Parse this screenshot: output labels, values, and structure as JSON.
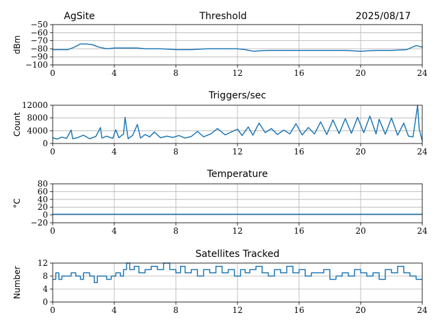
{
  "header": {
    "site": "AgSite",
    "date": "2025/08/17"
  },
  "colors": {
    "series": "#1f77b4",
    "grid": "#b0b0b0"
  },
  "chart_data": [
    {
      "type": "line",
      "title": "Threshold",
      "xlabel": "",
      "ylabel": "dBm",
      "xlim": [
        0,
        24
      ],
      "ylim": [
        -100,
        -50
      ],
      "xticks": [
        0,
        4,
        8,
        12,
        16,
        20,
        24
      ],
      "yticks": [
        -100,
        -90,
        -80,
        -70,
        -60,
        -50
      ],
      "ytick_labels": [
        "−100",
        "−90",
        "−80",
        "−70",
        "−60",
        "−50"
      ],
      "grid": true,
      "series": [
        {
          "x": [
            0,
            0.5,
            1,
            1.4,
            1.8,
            2.2,
            2.6,
            3.0,
            3.5,
            4,
            4.5,
            5,
            5.5,
            6,
            7,
            8,
            9,
            10,
            11,
            12,
            12.5,
            13,
            14,
            15,
            16,
            17,
            18,
            19,
            20,
            21,
            22,
            23,
            23.6,
            24
          ],
          "y": [
            -81,
            -81,
            -81,
            -78,
            -74,
            -74,
            -75,
            -78,
            -80,
            -79,
            -79,
            -79,
            -79,
            -80,
            -80,
            -81,
            -81,
            -80,
            -80,
            -80,
            -81,
            -83,
            -82,
            -82,
            -82,
            -82,
            -82,
            -82,
            -83,
            -82,
            -82,
            -81,
            -76,
            -78
          ]
        }
      ]
    },
    {
      "type": "line",
      "title": "Triggers/sec",
      "xlabel": "",
      "ylabel": "Count",
      "xlim": [
        0,
        24
      ],
      "ylim": [
        0,
        12000
      ],
      "xticks": [
        0,
        4,
        8,
        12,
        16,
        20,
        24
      ],
      "yticks": [
        0,
        4000,
        8000,
        12000
      ],
      "ytick_labels": [
        "0",
        "4000",
        "8000",
        "12000"
      ],
      "grid": true,
      "series": [
        {
          "x": [
            0,
            0.3,
            0.6,
            0.9,
            1.2,
            1.3,
            1.6,
            2.0,
            2.4,
            2.8,
            3.1,
            3.2,
            3.5,
            3.9,
            4.1,
            4.3,
            4.6,
            4.7,
            4.9,
            5.2,
            5.5,
            5.7,
            6.0,
            6.3,
            6.6,
            7.0,
            7.4,
            7.8,
            8.2,
            8.6,
            9.0,
            9.4,
            9.8,
            10.3,
            10.7,
            11.2,
            11.6,
            12.0,
            12.3,
            12.7,
            13.0,
            13.4,
            13.8,
            14.2,
            14.6,
            15.0,
            15.4,
            15.8,
            16.2,
            16.6,
            17.0,
            17.4,
            17.8,
            18.2,
            18.6,
            19.0,
            19.4,
            19.8,
            20.2,
            20.6,
            21.0,
            21.2,
            21.6,
            22.0,
            22.4,
            22.8,
            23.1,
            23.4,
            23.7,
            23.8,
            24.0
          ],
          "y": [
            1800,
            1400,
            2000,
            1600,
            4200,
            1500,
            1800,
            2600,
            1500,
            2200,
            5000,
            1700,
            2300,
            1600,
            4300,
            1800,
            3000,
            8200,
            1500,
            2600,
            6000,
            1700,
            2800,
            2100,
            3600,
            1800,
            2300,
            1900,
            2500,
            1700,
            2200,
            3800,
            2100,
            3100,
            4700,
            2700,
            3600,
            4500,
            2500,
            5200,
            2600,
            6400,
            3400,
            4700,
            2800,
            4200,
            3000,
            6200,
            2700,
            5000,
            3000,
            6800,
            2800,
            7400,
            3100,
            7800,
            3200,
            8200,
            3400,
            8600,
            3000,
            7600,
            2900,
            8000,
            2600,
            6400,
            2300,
            2100,
            12000,
            4600,
            800
          ]
        }
      ]
    },
    {
      "type": "line",
      "title": "Temperature",
      "xlabel": "",
      "ylabel": "°C",
      "xlim": [
        0,
        24
      ],
      "ylim": [
        -20,
        80
      ],
      "xticks": [
        0,
        4,
        8,
        12,
        16,
        20,
        24
      ],
      "yticks": [
        -20,
        0,
        20,
        40,
        60,
        80
      ],
      "ytick_labels": [
        "−20",
        "0",
        "20",
        "40",
        "60",
        "80"
      ],
      "grid": true,
      "series": [
        {
          "x": [
            0,
            24
          ],
          "y": [
            2,
            2
          ]
        }
      ]
    },
    {
      "type": "line",
      "title": "Satellites Tracked",
      "xlabel": "",
      "ylabel": "Number",
      "xlim": [
        0,
        24
      ],
      "ylim": [
        0,
        12
      ],
      "xticks": [
        0,
        4,
        8,
        12,
        16,
        20,
        24
      ],
      "yticks": [
        0,
        4,
        8,
        12
      ],
      "ytick_labels": [
        "0",
        "4",
        "8",
        "12"
      ],
      "grid": true,
      "series": [
        {
          "step": true,
          "x": [
            0,
            0.2,
            0.4,
            0.6,
            0.9,
            1.2,
            1.5,
            1.8,
            2.0,
            2.4,
            2.7,
            2.9,
            3.2,
            3.5,
            3.8,
            4.1,
            4.4,
            4.6,
            4.8,
            5.0,
            5.3,
            5.6,
            6.0,
            6.4,
            6.8,
            7.2,
            7.6,
            8.0,
            8.3,
            8.6,
            9.0,
            9.4,
            9.8,
            10.2,
            10.6,
            11.0,
            11.4,
            11.8,
            12.2,
            12.5,
            12.8,
            13.2,
            13.6,
            14.0,
            14.4,
            14.8,
            15.2,
            15.6,
            16.0,
            16.4,
            16.8,
            17.2,
            17.6,
            18.0,
            18.4,
            18.8,
            19.2,
            19.6,
            20.0,
            20.4,
            20.8,
            21.2,
            21.6,
            22.0,
            22.4,
            22.8,
            23.2,
            23.6,
            24.0
          ],
          "y": [
            7,
            9,
            7,
            8,
            8,
            9,
            8,
            7,
            9,
            8,
            6,
            8,
            8,
            7,
            8,
            9,
            8,
            10,
            12,
            10,
            11,
            9,
            10,
            11,
            10,
            12,
            10,
            9,
            11,
            9,
            10,
            8,
            10,
            9,
            11,
            9,
            10,
            8,
            10,
            9,
            10,
            11,
            9,
            8,
            10,
            9,
            11,
            9,
            10,
            8,
            9,
            9,
            10,
            7,
            8,
            9,
            8,
            10,
            9,
            8,
            9,
            7,
            10,
            9,
            11,
            9,
            8,
            7,
            7
          ]
        }
      ]
    }
  ]
}
